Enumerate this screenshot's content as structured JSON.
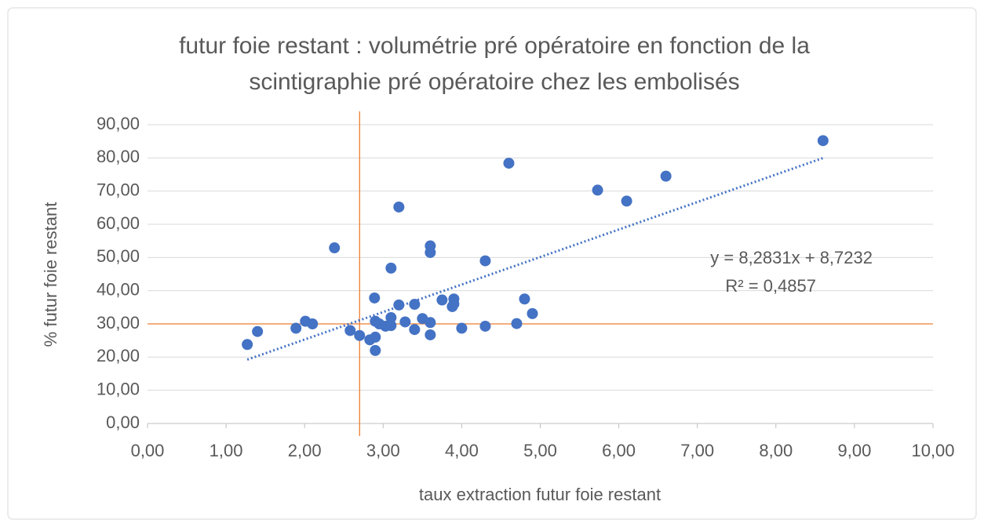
{
  "chart_data": {
    "type": "scatter",
    "title": [
      "futur foie restant : volumétrie pré opératoire en fonction de la",
      "scintigraphie pré opératoire chez les embolisés"
    ],
    "x_label": "taux extraction futur foie restant",
    "y_label": "% futur foie restant",
    "color": "#4472c4",
    "x": [
      1.27,
      1.4,
      1.89,
      2.01,
      2.1,
      2.38,
      2.58,
      2.7,
      2.83,
      2.89,
      2.9,
      2.9,
      2.9,
      2.95,
      3.03,
      3.1,
      3.1,
      3.1,
      3.2,
      3.2,
      3.28,
      3.4,
      3.4,
      3.5,
      3.6,
      3.6,
      3.6,
      3.6,
      3.75,
      3.88,
      3.9,
      3.9,
      4.0,
      4.3,
      4.3,
      4.6,
      4.7,
      4.8,
      4.9,
      5.73,
      6.1,
      6.6,
      8.6
    ],
    "values": [
      23.8,
      27.7,
      28.7,
      30.8,
      30.0,
      52.9,
      28.0,
      26.5,
      25.2,
      37.8,
      22.0,
      26.0,
      30.8,
      30.0,
      29.3,
      46.8,
      31.9,
      29.5,
      65.2,
      35.7,
      30.6,
      35.9,
      28.3,
      31.6,
      53.5,
      51.5,
      30.4,
      26.7,
      37.2,
      35.2,
      37.5,
      36.0,
      28.7,
      49.0,
      29.3,
      78.4,
      30.1,
      37.5,
      33.1,
      70.3,
      67.0,
      74.5,
      85.2
    ],
    "trendline": {
      "slope": 8.2831,
      "intercept": 8.7232,
      "color": "#4472c4",
      "annotation": [
        "y = 8,2831x + 8,7232",
        "R² = 0,4857"
      ]
    },
    "reference_lines": {
      "x": 2.7,
      "y": 30,
      "color": "#ed7d31"
    },
    "xlim": [
      0,
      10
    ],
    "ylim": [
      0,
      90
    ],
    "xticks": [
      {
        "value": 0,
        "label": "0,00"
      },
      {
        "value": 1,
        "label": "1,00"
      },
      {
        "value": 2,
        "label": "2,00"
      },
      {
        "value": 3,
        "label": "3,00"
      },
      {
        "value": 4,
        "label": "4,00"
      },
      {
        "value": 5,
        "label": "5,00"
      },
      {
        "value": 6,
        "label": "6,00"
      },
      {
        "value": 7,
        "label": "7,00"
      },
      {
        "value": 8,
        "label": "8,00"
      },
      {
        "value": 9,
        "label": "9,00"
      },
      {
        "value": 10,
        "label": "10,00"
      }
    ],
    "yticks": [
      {
        "value": 0,
        "label": "0,00"
      },
      {
        "value": 10,
        "label": "10,00"
      },
      {
        "value": 20,
        "label": "20,00"
      },
      {
        "value": 30,
        "label": "30,00"
      },
      {
        "value": 40,
        "label": "40,00"
      },
      {
        "value": 50,
        "label": "50,00"
      },
      {
        "value": 60,
        "label": "60,00"
      },
      {
        "value": 70,
        "label": "70,00"
      },
      {
        "value": 80,
        "label": "80,00"
      },
      {
        "value": 90,
        "label": "90,00"
      }
    ],
    "grid": true
  }
}
